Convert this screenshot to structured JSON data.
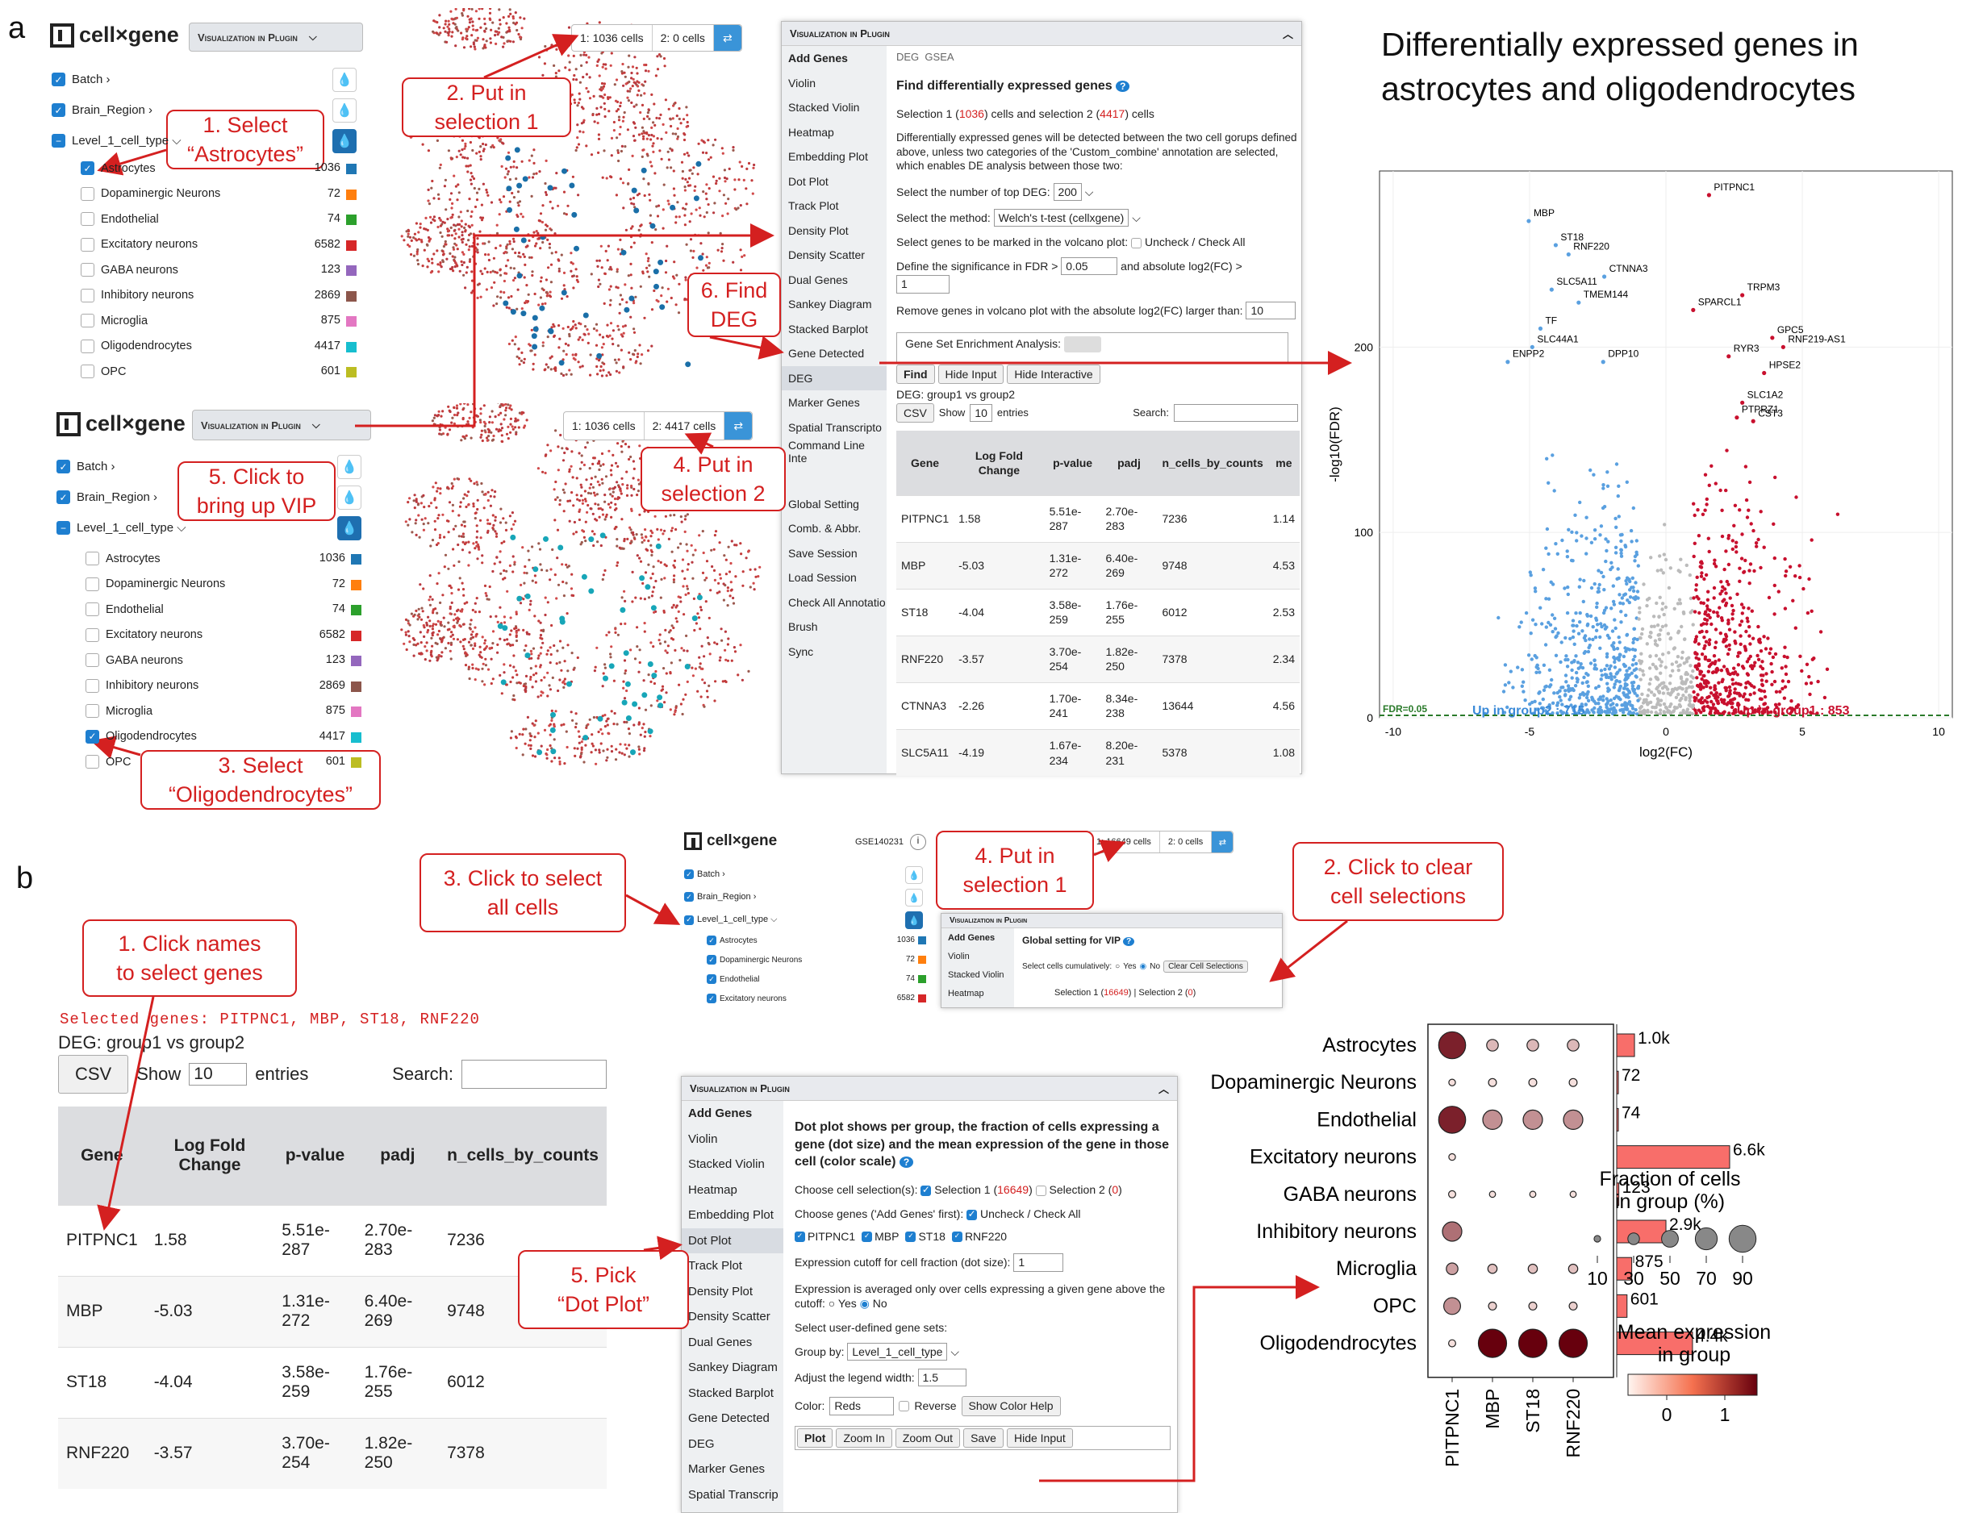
{
  "panel_letters": {
    "a": "a",
    "b": "b"
  },
  "app": {
    "logo": "cell×gene",
    "vip_button": "Visualization in Plugin",
    "dataset_id": "GSE140231"
  },
  "sidebar_top": {
    "annotations": [
      "Batch",
      "Brain_Region",
      "Level_1_cell_type"
    ],
    "categories": [
      {
        "label": "Astrocytes",
        "count": "1036",
        "color": "#1f77b4",
        "checked": true
      },
      {
        "label": "Dopaminergic Neurons",
        "count": "72",
        "color": "#ff7f0e",
        "checked": false
      },
      {
        "label": "Endothelial",
        "count": "74",
        "color": "#2ca02c",
        "checked": false
      },
      {
        "label": "Excitatory neurons",
        "count": "6582",
        "color": "#d62728",
        "checked": false
      },
      {
        "label": "GABA neurons",
        "count": "123",
        "color": "#9467bd",
        "checked": false
      },
      {
        "label": "Inhibitory neurons",
        "count": "2869",
        "color": "#8c564b",
        "checked": false
      },
      {
        "label": "Microglia",
        "count": "875",
        "color": "#e377c2",
        "checked": false
      },
      {
        "label": "Oligodendrocytes",
        "count": "4417",
        "color": "#17becf",
        "checked": false
      },
      {
        "label": "OPC",
        "count": "601",
        "color": "#bcbd22",
        "checked": false
      }
    ]
  },
  "sidebar_bottom": {
    "categories": [
      {
        "label": "Astrocytes",
        "count": "1036",
        "color": "#1f77b4",
        "checked": false
      },
      {
        "label": "Dopaminergic Neurons",
        "count": "72",
        "color": "#ff7f0e",
        "checked": false
      },
      {
        "label": "Endothelial",
        "count": "74",
        "color": "#2ca02c",
        "checked": false
      },
      {
        "label": "Excitatory neurons",
        "count": "6582",
        "color": "#d62728",
        "checked": false
      },
      {
        "label": "GABA neurons",
        "count": "123",
        "color": "#9467bd",
        "checked": false
      },
      {
        "label": "Inhibitory neurons",
        "count": "2869",
        "color": "#8c564b",
        "checked": false
      },
      {
        "label": "Microglia",
        "count": "875",
        "color": "#e377c2",
        "checked": false
      },
      {
        "label": "Oligodendrocytes",
        "count": "4417",
        "color": "#17becf",
        "checked": true
      },
      {
        "label": "OPC",
        "count": "601",
        "color": "#bcbd22",
        "checked": false
      }
    ]
  },
  "cellbars": {
    "top": {
      "s1": "1: 1036 cells",
      "s2": "2: 0 cells"
    },
    "bottom": {
      "s1": "1: 1036 cells",
      "s2": "2: 4417 cells"
    },
    "b": {
      "s1": "1: 16649 cells",
      "s2": "2: 0 cells"
    }
  },
  "callouts": {
    "a1": "1. Select\n“Astrocytes”",
    "a2": "2. Put in\nselection 1",
    "a3": "3. Select\n“Oligodendrocytes”",
    "a4": "4. Put in\nselection 2",
    "a5": "5. Click to\nbring up VIP",
    "a6": "6. Find\nDEG",
    "b1": "1. Click names\nto select genes",
    "b2": "2. Click to clear\ncell selections",
    "b3": "3. Click to select\nall cells",
    "b4": "4. Put in\nselection 1",
    "b5": "5. Pick\n“Dot Plot”"
  },
  "vip_menu": [
    "Add Genes",
    "Violin",
    "Stacked Violin",
    "Heatmap",
    "Embedding Plot",
    "Dot Plot",
    "Track Plot",
    "Density Plot",
    "Density Scatter",
    "Dual Genes",
    "Sankey Diagram",
    "Stacked Barplot",
    "Gene Detected",
    "DEG",
    "Marker Genes",
    "Spatial Transcripto",
    "Command Line Inte",
    "",
    "Global Setting",
    "Comb. & Abbr.",
    "Save Session",
    "Load Session",
    "Check All Annotatio",
    "Brush",
    "Sync"
  ],
  "deg": {
    "tabs": [
      "DEG",
      "GSEA"
    ],
    "heading": "Find differentially expressed genes",
    "sel_text_pre": "Selection 1 (",
    "sel1": "1036",
    "sel_mid": ") cells and selection 2 (",
    "sel2": "4417",
    "sel_post": ") cells",
    "desc": "Differentially expressed genes will be detected between the two cell gorups defined above, unless two categories of the 'Custom_combine' annotation are selected, which enables DE analysis between those two:",
    "topdeg_label": "Select the number of top DEG:",
    "topdeg": "200",
    "method_label": "Select the method:",
    "method": "Welch's t-test (cellxgene)",
    "mark_label": "Select genes to be marked in the volcano plot:",
    "uncheck": "Uncheck / Check All",
    "fdr_label": "Define the significance in FDR >",
    "fdr": "0.05",
    "fc_label": "and absolute log2(FC) >",
    "fc": "1",
    "remove_label": "Remove genes in volcano plot with the absolute log2(FC) larger than:",
    "remove": "10",
    "gsea_label": "Gene Set Enrichment Analysis:",
    "buttons": [
      "Find",
      "Hide Input",
      "Hide Interactive"
    ],
    "caption": "DEG: group1 vs group2",
    "csv": "CSV",
    "show": "Show",
    "entries": "entries",
    "show_n": "10",
    "search": "Search:",
    "headers": [
      "Gene",
      "Log Fold Change",
      "p-value",
      "padj",
      "n_cells_by_counts",
      "me"
    ],
    "rows": [
      [
        "PITPNC1",
        "1.58",
        "5.51e-287",
        "2.70e-283",
        "7236",
        "1.14"
      ],
      [
        "MBP",
        "-5.03",
        "1.31e-272",
        "6.40e-269",
        "9748",
        "4.53"
      ],
      [
        "ST18",
        "-4.04",
        "3.58e-259",
        "1.76e-255",
        "6012",
        "2.53"
      ],
      [
        "RNF220",
        "-3.57",
        "3.70e-254",
        "1.82e-250",
        "7378",
        "2.34"
      ],
      [
        "CTNNA3",
        "-2.26",
        "1.70e-241",
        "8.34e-238",
        "13644",
        "4.56"
      ],
      [
        "SLC5A11",
        "-4.19",
        "1.67e-234",
        "8.20e-231",
        "5378",
        "1.08"
      ]
    ]
  },
  "volcano_title": "Differentially expressed genes in\nastrocytes and oligodendrocytes",
  "chart_data": [
    {
      "type": "scatter",
      "xlabel": "log2(FC)",
      "ylabel": "-log10(FDR)",
      "xlim": [
        -10.5,
        10.5
      ],
      "ylim": [
        0,
        295
      ],
      "xticks": [
        "-10",
        "-5",
        "0",
        "5",
        "10"
      ],
      "yticks": [
        "0",
        "100",
        "200"
      ],
      "fdr_line": "FDR=0.05",
      "group2_label": "Up in group2 : 715",
      "group1_label": "Up in group1 : 853",
      "labeled_genes": [
        {
          "name": "PITPNC1",
          "x": 1.58,
          "y": 282
        },
        {
          "name": "MBP",
          "x": -5.03,
          "y": 268
        },
        {
          "name": "ST18",
          "x": -4.04,
          "y": 255
        },
        {
          "name": "RNF220",
          "x": -3.57,
          "y": 250
        },
        {
          "name": "CTNNA3",
          "x": -2.26,
          "y": 238
        },
        {
          "name": "SLC5A11",
          "x": -4.19,
          "y": 231
        },
        {
          "name": "TMEM144",
          "x": -3.2,
          "y": 224
        },
        {
          "name": "SPARCL1",
          "x": 1.0,
          "y": 220
        },
        {
          "name": "TRPM3",
          "x": 2.8,
          "y": 228
        },
        {
          "name": "TF",
          "x": -4.6,
          "y": 210
        },
        {
          "name": "GPC5",
          "x": 3.9,
          "y": 205
        },
        {
          "name": "RNF219-AS1",
          "x": 4.3,
          "y": 200
        },
        {
          "name": "ENPP2",
          "x": -5.8,
          "y": 192
        },
        {
          "name": "SLC44A1",
          "x": -4.9,
          "y": 200
        },
        {
          "name": "DPP10",
          "x": -2.3,
          "y": 192
        },
        {
          "name": "RYR3",
          "x": 2.3,
          "y": 195
        },
        {
          "name": "HPSE2",
          "x": 3.6,
          "y": 186
        },
        {
          "name": "SLC1A2",
          "x": 2.8,
          "y": 170
        },
        {
          "name": "CST3",
          "x": 3.2,
          "y": 160
        },
        {
          "name": "PTPRZ1",
          "x": 2.6,
          "y": 162
        }
      ]
    },
    {
      "type": "dotplot",
      "genes": [
        "PITPNC1",
        "MBP",
        "ST18",
        "RNF220"
      ],
      "groups": [
        "Astrocytes",
        "Dopaminergic Neurons",
        "Endothelial",
        "Excitatory neurons",
        "GABA neurons",
        "Inhibitory neurons",
        "Microglia",
        "OPC",
        "Oligodendrocytes"
      ],
      "fraction_pct": [
        [
          90,
          30,
          30,
          30
        ],
        [
          10,
          15,
          15,
          15
        ],
        [
          90,
          60,
          60,
          60
        ],
        [
          10,
          0,
          0,
          0
        ],
        [
          12,
          8,
          8,
          8
        ],
        [
          60,
          0,
          0,
          0
        ],
        [
          30,
          20,
          20,
          20
        ],
        [
          50,
          15,
          15,
          15
        ],
        [
          12,
          95,
          95,
          95
        ]
      ],
      "mean_expr": [
        [
          1.3,
          0.35,
          0.35,
          0.35
        ],
        [
          0.1,
          0.1,
          0.1,
          0.1
        ],
        [
          1.3,
          0.6,
          0.6,
          0.6
        ],
        [
          0.1,
          0,
          0,
          0
        ],
        [
          0.1,
          0.1,
          0.1,
          0.1
        ],
        [
          0.8,
          0,
          0,
          0
        ],
        [
          0.5,
          0.3,
          0.3,
          0.3
        ],
        [
          0.6,
          0.2,
          0.2,
          0.2
        ],
        [
          0.1,
          1.5,
          1.5,
          1.5
        ]
      ],
      "bar_values": [
        1036,
        72,
        74,
        6582,
        123,
        2869,
        875,
        601,
        4417
      ],
      "bar_labels": [
        "1.0k",
        "72",
        "74",
        "6.6k",
        "123",
        "2.9k",
        "875",
        "601",
        "4.4k"
      ],
      "size_legend_title": "Fraction of cells\nin group (%)",
      "size_legend_ticks": [
        "10",
        "30",
        "50",
        "70",
        "90"
      ],
      "color_legend_title": "Mean expression\nin group",
      "color_legend_ticks": [
        "0",
        "1"
      ]
    }
  ],
  "panelb": {
    "selected": "Selected genes: PITPNC1, MBP, ST18, RNF220",
    "caption": "DEG: group1 vs group2",
    "csv": "CSV",
    "show": "Show",
    "show_n": "10",
    "entries": "entries",
    "search": "Search:",
    "headers": [
      "Gene",
      "Log Fold Change",
      "p-value",
      "padj",
      "n_cells_by_counts"
    ],
    "rows": [
      [
        "PITPNC1",
        "1.58",
        "5.51e-287",
        "2.70e-283",
        "7236"
      ],
      [
        "MBP",
        "-5.03",
        "1.31e-272",
        "6.40e-269",
        "9748"
      ],
      [
        "ST18",
        "-4.04",
        "3.58e-259",
        "1.76e-255",
        "6012"
      ],
      [
        "RNF220",
        "-3.57",
        "3.70e-254",
        "1.82e-250",
        "7378"
      ]
    ],
    "mini_categories": [
      {
        "label": "Astrocytes",
        "count": "1036",
        "color": "#1f77b4"
      },
      {
        "label": "Dopaminergic Neurons",
        "count": "72",
        "color": "#ff7f0e"
      },
      {
        "label": "Endothelial",
        "count": "74",
        "color": "#2ca02c"
      },
      {
        "label": "Excitatory neurons",
        "count": "6582",
        "color": "#d62728"
      }
    ],
    "global": {
      "menu": [
        "Add Genes",
        "Violin",
        "Stacked Violin",
        "Heatmap"
      ],
      "title": "Global setting for VIP",
      "cum_label": "Select cells cumulatively:",
      "yes": "Yes",
      "no": "No",
      "clear": "Clear Cell Selections",
      "sel_pre": "Selection 1 (",
      "s1": "16649",
      "sel_mid": ") | Selection 2 (",
      "s2": "0",
      "sel_post": ")"
    },
    "dot_menu": [
      "Add Genes",
      "Violin",
      "Stacked Violin",
      "Heatmap",
      "Embedding Plot",
      "Dot Plot",
      "Track Plot",
      "Density Plot",
      "Density Scatter",
      "Dual Genes",
      "Sankey Diagram",
      "Stacked Barplot",
      "Gene Detected",
      "DEG",
      "Marker Genes",
      "Spatial Transcrip"
    ],
    "dot": {
      "desc": "Dot plot shows per group, the fraction of cells expressing a gene (dot size) and the mean expression of the gene in those cell (color scale)",
      "choose_label": "Choose cell selection(s):",
      "s1_pre": "Selection 1 (",
      "s1": "16649",
      "s2_pre": "Selection 2 (",
      "s2": "0",
      "close": ")",
      "genes_label": "Choose genes ('Add Genes' first):",
      "uncheck": "Uncheck / Check All",
      "genes": [
        "PITPNC1",
        "MBP",
        "ST18",
        "RNF220"
      ],
      "cutoff_label": "Expression cutoff for cell fraction (dot size):",
      "cutoff": "1",
      "avg_label": "Expression is averaged only over cells expressing a given gene above the cutoff:",
      "yes": "Yes",
      "no": "No",
      "usersets": "Select user-defined gene sets:",
      "groupby_label": "Group by:",
      "groupby": "Level_1_cell_type",
      "legend_label": "Adjust the legend width:",
      "legend": "1.5",
      "color_label": "Color:",
      "color": "Reds",
      "reverse": "Reverse",
      "colorhelp": "Show Color Help",
      "buttons": [
        "Plot",
        "Zoom In",
        "Zoom Out",
        "Save",
        "Hide Input"
      ]
    }
  }
}
